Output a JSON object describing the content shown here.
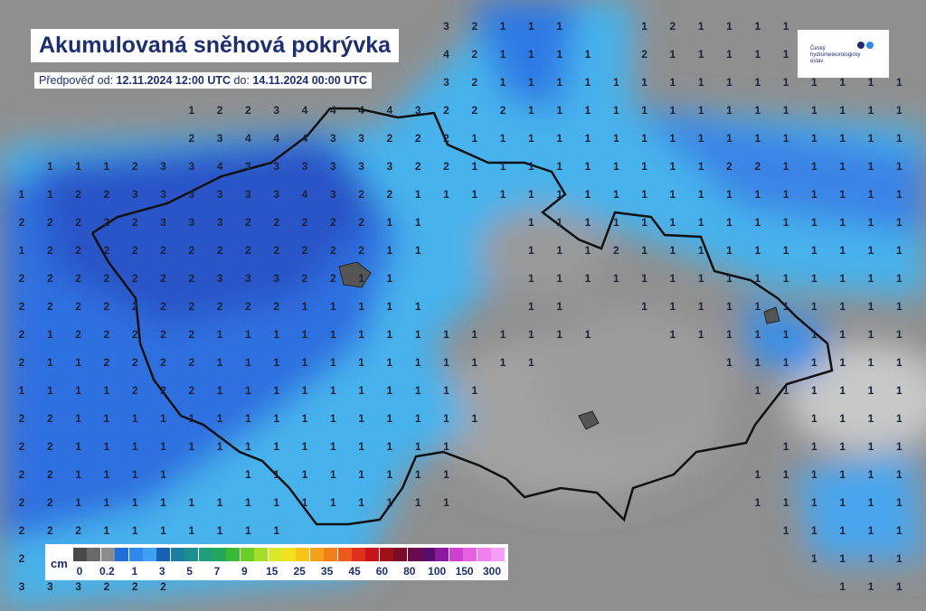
{
  "header": {
    "title": "Akumulovaná sněhová pokrývka",
    "subtitle": {
      "from_label": "Předpověď od:",
      "from": "12.11.2024 12:00 UTC",
      "to_label": "do:",
      "to": "14.11.2024 00:00 UTC"
    }
  },
  "logo": {
    "text": "Český hydrometeorologický ústav"
  },
  "legend": {
    "unit": "cm",
    "colors": [
      "#4a4a4a",
      "#6a6a6a",
      "#8c8c8c",
      "#1e6fd9",
      "#2f88ea",
      "#40a0f2",
      "#1b5fb0",
      "#1a7fa0",
      "#1d8f8f",
      "#1e9e7a",
      "#22a85c",
      "#3ab83a",
      "#6ccc2a",
      "#a8dc2a",
      "#d8e82a",
      "#f2e21e",
      "#f5c518",
      "#f5a21a",
      "#f27e1c",
      "#ee5a1e",
      "#e0301e",
      "#c8141a",
      "#a0101a",
      "#7a0c2a",
      "#6a0c4a",
      "#5a0c6a",
      "#8a1aa0",
      "#d040d0",
      "#e860e0",
      "#f080f0",
      "#f5a0f5"
    ],
    "labels": [
      0,
      0.2,
      1,
      3,
      5,
      7,
      9,
      15,
      25,
      35,
      45,
      60,
      80,
      100,
      150,
      300
    ]
  },
  "grid": {
    "rows": [
      [
        null,
        null,
        null,
        null,
        null,
        null,
        null,
        null,
        null,
        null,
        null,
        null,
        null,
        null,
        null,
        3,
        2,
        1,
        1,
        1,
        null,
        null,
        1,
        2,
        1,
        1,
        1,
        1,
        null,
        null,
        null,
        null
      ],
      [
        null,
        null,
        null,
        null,
        null,
        null,
        null,
        null,
        null,
        null,
        null,
        null,
        null,
        null,
        null,
        4,
        2,
        1,
        1,
        1,
        1,
        null,
        2,
        1,
        1,
        1,
        1,
        1,
        null,
        null,
        null,
        null
      ],
      [
        null,
        null,
        null,
        null,
        null,
        null,
        null,
        null,
        null,
        null,
        null,
        null,
        null,
        null,
        null,
        3,
        2,
        1,
        1,
        1,
        1,
        1,
        1,
        1,
        1,
        1,
        1,
        1,
        1,
        1,
        1,
        1
      ],
      [
        null,
        null,
        null,
        null,
        null,
        null,
        1,
        2,
        2,
        3,
        4,
        4,
        4,
        4,
        3,
        2,
        2,
        2,
        1,
        1,
        1,
        1,
        1,
        1,
        1,
        1,
        1,
        1,
        1,
        1,
        1,
        1
      ],
      [
        null,
        null,
        null,
        null,
        null,
        null,
        2,
        3,
        4,
        4,
        4,
        3,
        3,
        2,
        2,
        2,
        1,
        1,
        1,
        1,
        1,
        1,
        1,
        1,
        1,
        1,
        1,
        1,
        1,
        1,
        1,
        1
      ],
      [
        null,
        1,
        1,
        1,
        2,
        3,
        3,
        4,
        3,
        3,
        3,
        3,
        3,
        3,
        2,
        2,
        1,
        1,
        1,
        1,
        1,
        1,
        1,
        1,
        1,
        2,
        2,
        1,
        1,
        1,
        1,
        1
      ],
      [
        1,
        1,
        2,
        2,
        3,
        3,
        3,
        3,
        3,
        3,
        4,
        3,
        2,
        2,
        1,
        1,
        1,
        1,
        1,
        1,
        1,
        1,
        1,
        1,
        1,
        1,
        1,
        1,
        1,
        1,
        1,
        1
      ],
      [
        2,
        2,
        2,
        2,
        2,
        3,
        3,
        3,
        2,
        2,
        2,
        2,
        2,
        1,
        1,
        null,
        null,
        null,
        1,
        1,
        1,
        1,
        1,
        1,
        1,
        1,
        1,
        1,
        1,
        1,
        1,
        1
      ],
      [
        1,
        2,
        2,
        2,
        2,
        2,
        2,
        2,
        2,
        2,
        2,
        2,
        2,
        1,
        1,
        null,
        null,
        null,
        1,
        1,
        1,
        2,
        1,
        1,
        1,
        1,
        1,
        1,
        1,
        1,
        1,
        1
      ],
      [
        2,
        2,
        2,
        2,
        2,
        2,
        2,
        3,
        3,
        3,
        2,
        2,
        1,
        1,
        null,
        null,
        null,
        null,
        1,
        1,
        1,
        1,
        1,
        1,
        1,
        1,
        1,
        1,
        1,
        1,
        1,
        1
      ],
      [
        2,
        2,
        2,
        2,
        2,
        2,
        2,
        2,
        2,
        2,
        1,
        1,
        1,
        1,
        1,
        null,
        null,
        null,
        1,
        1,
        null,
        null,
        1,
        1,
        1,
        1,
        1,
        1,
        1,
        1,
        1,
        1
      ],
      [
        2,
        1,
        2,
        2,
        2,
        2,
        2,
        1,
        1,
        1,
        1,
        1,
        1,
        1,
        1,
        1,
        1,
        1,
        1,
        1,
        1,
        null,
        null,
        1,
        1,
        1,
        1,
        1,
        1,
        1,
        1,
        1
      ],
      [
        2,
        1,
        1,
        2,
        2,
        2,
        2,
        1,
        1,
        1,
        1,
        1,
        1,
        1,
        1,
        1,
        1,
        1,
        1,
        null,
        null,
        null,
        null,
        null,
        null,
        1,
        1,
        1,
        1,
        1,
        1,
        1
      ],
      [
        1,
        1,
        1,
        1,
        2,
        2,
        2,
        1,
        1,
        1,
        1,
        1,
        1,
        1,
        1,
        1,
        1,
        null,
        null,
        null,
        null,
        null,
        null,
        null,
        null,
        null,
        1,
        1,
        1,
        1,
        1,
        1
      ],
      [
        2,
        2,
        1,
        1,
        1,
        1,
        1,
        1,
        1,
        1,
        1,
        1,
        1,
        1,
        1,
        1,
        1,
        null,
        null,
        null,
        null,
        null,
        null,
        null,
        null,
        null,
        null,
        null,
        1,
        1,
        1,
        1
      ],
      [
        2,
        2,
        1,
        1,
        1,
        1,
        1,
        1,
        1,
        1,
        1,
        1,
        1,
        1,
        1,
        1,
        null,
        null,
        null,
        null,
        null,
        null,
        null,
        null,
        null,
        null,
        null,
        1,
        1,
        1,
        1,
        1
      ],
      [
        2,
        2,
        1,
        1,
        1,
        1,
        null,
        null,
        1,
        1,
        1,
        1,
        1,
        1,
        1,
        1,
        null,
        null,
        null,
        null,
        null,
        null,
        null,
        null,
        null,
        null,
        1,
        1,
        1,
        1,
        1,
        1
      ],
      [
        2,
        2,
        1,
        1,
        1,
        1,
        1,
        1,
        1,
        1,
        1,
        1,
        1,
        1,
        1,
        1,
        null,
        null,
        null,
        null,
        null,
        null,
        null,
        null,
        null,
        null,
        1,
        1,
        1,
        1,
        1,
        1
      ],
      [
        2,
        2,
        2,
        1,
        1,
        1,
        1,
        1,
        1,
        1,
        null,
        null,
        null,
        null,
        null,
        null,
        null,
        null,
        null,
        null,
        null,
        null,
        null,
        null,
        null,
        null,
        null,
        1,
        1,
        1,
        1,
        1
      ],
      [
        2,
        null,
        null,
        null,
        null,
        null,
        null,
        null,
        null,
        null,
        null,
        null,
        null,
        null,
        null,
        null,
        null,
        null,
        null,
        null,
        null,
        null,
        null,
        null,
        null,
        null,
        null,
        null,
        1,
        1,
        1,
        1
      ],
      [
        3,
        3,
        3,
        2,
        2,
        2,
        null,
        null,
        null,
        null,
        null,
        null,
        null,
        null,
        null,
        null,
        null,
        null,
        null,
        null,
        null,
        null,
        null,
        null,
        null,
        null,
        null,
        null,
        null,
        1,
        1,
        1
      ]
    ]
  }
}
